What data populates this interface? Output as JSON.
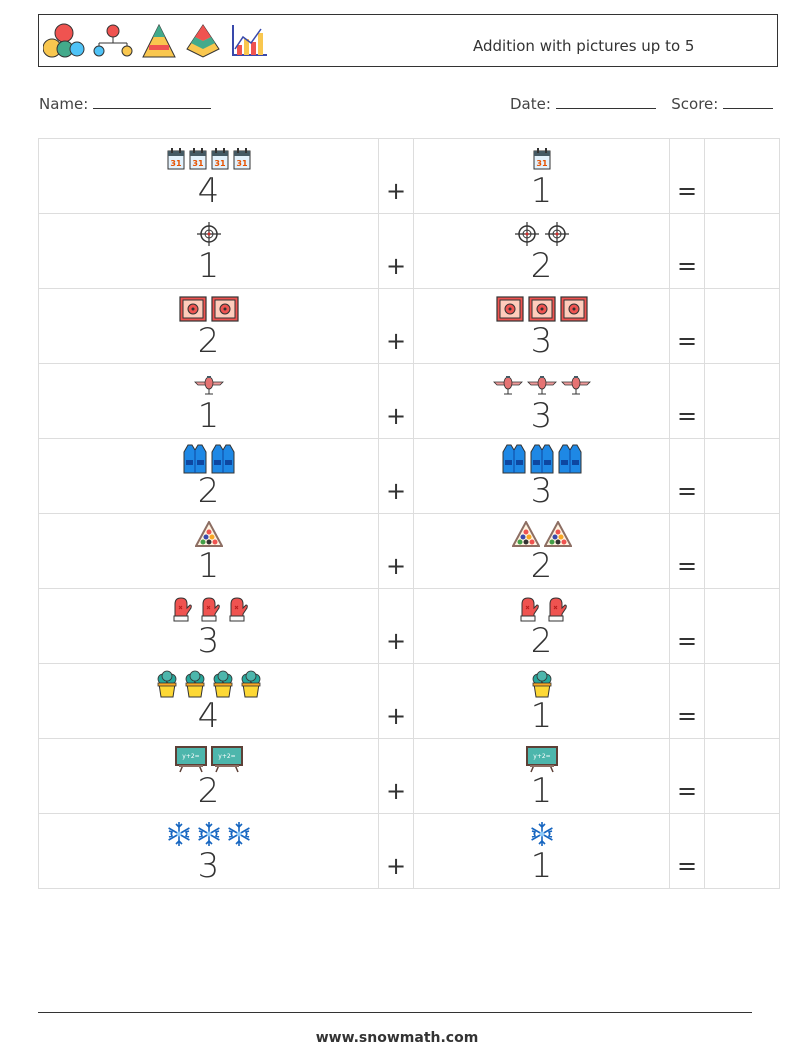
{
  "header": {
    "title": "Addition with pictures up to 5",
    "icons": [
      "number-circles-icon",
      "tree-diagram-icon",
      "pyramid-icon",
      "layered-pyramid-icon",
      "bar-chart-icon"
    ]
  },
  "meta": {
    "name_label": "Name:",
    "date_label": "Date:",
    "score_label": "Score:"
  },
  "operators": {
    "plus": "+",
    "equals": "="
  },
  "problems": [
    {
      "a": 4,
      "a_icon": "calendar-icon",
      "b": 1,
      "b_icon": "calendar-icon"
    },
    {
      "a": 1,
      "a_icon": "crosshair-icon",
      "b": 2,
      "b_icon": "crosshair-icon"
    },
    {
      "a": 2,
      "a_icon": "safe-icon",
      "b": 3,
      "b_icon": "safe-icon"
    },
    {
      "a": 1,
      "a_icon": "airplane-icon",
      "b": 3,
      "b_icon": "airplane-icon"
    },
    {
      "a": 2,
      "a_icon": "vest-icon",
      "b": 3,
      "b_icon": "vest-icon"
    },
    {
      "a": 1,
      "a_icon": "billiard-rack-icon",
      "b": 2,
      "b_icon": "billiard-rack-icon"
    },
    {
      "a": 3,
      "a_icon": "mitten-icon",
      "b": 2,
      "b_icon": "mitten-icon"
    },
    {
      "a": 4,
      "a_icon": "potted-plant-icon",
      "b": 1,
      "b_icon": "potted-plant-icon"
    },
    {
      "a": 2,
      "a_icon": "chalkboard-icon",
      "b": 1,
      "b_icon": "chalkboard-icon"
    },
    {
      "a": 3,
      "a_icon": "snowflake-icon",
      "b": 1,
      "b_icon": "snowflake-icon"
    }
  ],
  "footer": {
    "url": "www.snowmath.com"
  }
}
